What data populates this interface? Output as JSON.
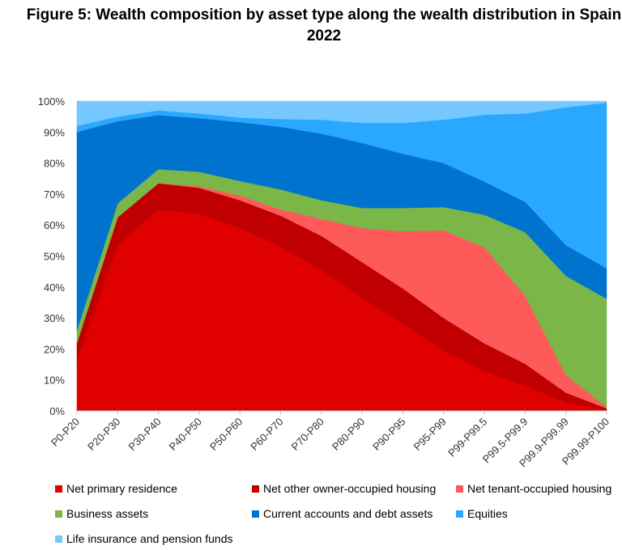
{
  "chart_data": {
    "type": "area",
    "stacked": true,
    "title_line1": "Figure 5: Wealth composition by asset type along the wealth distribution in Spain",
    "title_line2": "2022",
    "xlabel": "",
    "ylabel": "",
    "ylim": [
      0,
      100
    ],
    "y_ticks": [
      "0%",
      "10%",
      "20%",
      "30%",
      "40%",
      "50%",
      "60%",
      "70%",
      "80%",
      "90%",
      "100%"
    ],
    "categories": [
      "P0-P20",
      "P20-P30",
      "P30-P40",
      "P40-P50",
      "P50-P60",
      "P60-P70",
      "P70-P80",
      "P80-P90",
      "P90-P95",
      "P95-P99",
      "P99-P99.5",
      "P99.5-P99.9",
      "P99.9-P99.99",
      "P99.99-P100"
    ],
    "grid": false,
    "legend_position": "bottom",
    "series": [
      {
        "name": "Net primary residence",
        "color": "#e00000",
        "values": [
          16,
          53.5,
          65,
          63.5,
          59,
          53,
          45.5,
          36.5,
          28,
          19.5,
          12.8,
          8.2,
          2.7,
          0.3
        ]
      },
      {
        "name": "Net other owner-occupied housing",
        "color": "#c00000",
        "values": [
          6,
          9,
          8.5,
          8.5,
          9,
          10,
          11,
          11.5,
          11.5,
          10.5,
          9,
          7,
          3.2,
          0.5
        ]
      },
      {
        "name": "Net tenant-occupied housing",
        "color": "#ff5a5a",
        "values": [
          0,
          0,
          0,
          0.5,
          1.5,
          2,
          5.5,
          11,
          18.5,
          28.3,
          31,
          22,
          5.7,
          0.4
        ]
      },
      {
        "name": "Business assets",
        "color": "#7ab648",
        "values": [
          4,
          4.5,
          4.5,
          4.7,
          4.7,
          6.5,
          6,
          6.5,
          7.5,
          7.5,
          10.5,
          20.5,
          32,
          35
        ]
      },
      {
        "name": "Current accounts and debt assets",
        "color": "#0073cf",
        "values": [
          64,
          26.5,
          17.5,
          17.3,
          19,
          20.2,
          21.5,
          21,
          17.5,
          14.2,
          10.7,
          9.8,
          9.9,
          9.8
        ]
      },
      {
        "name": "Equities",
        "color": "#2aa8ff",
        "values": [
          2,
          1.5,
          1.5,
          1.5,
          1.5,
          2.5,
          4.5,
          6.5,
          10,
          14,
          21.6,
          28.5,
          44.5,
          53.5
        ]
      },
      {
        "name": "Life insurance and pension funds",
        "color": "#75c7ff",
        "values": [
          8,
          5,
          3,
          4,
          5.3,
          5.8,
          6,
          7,
          7,
          6,
          4.4,
          4,
          2,
          0.5
        ]
      }
    ]
  }
}
